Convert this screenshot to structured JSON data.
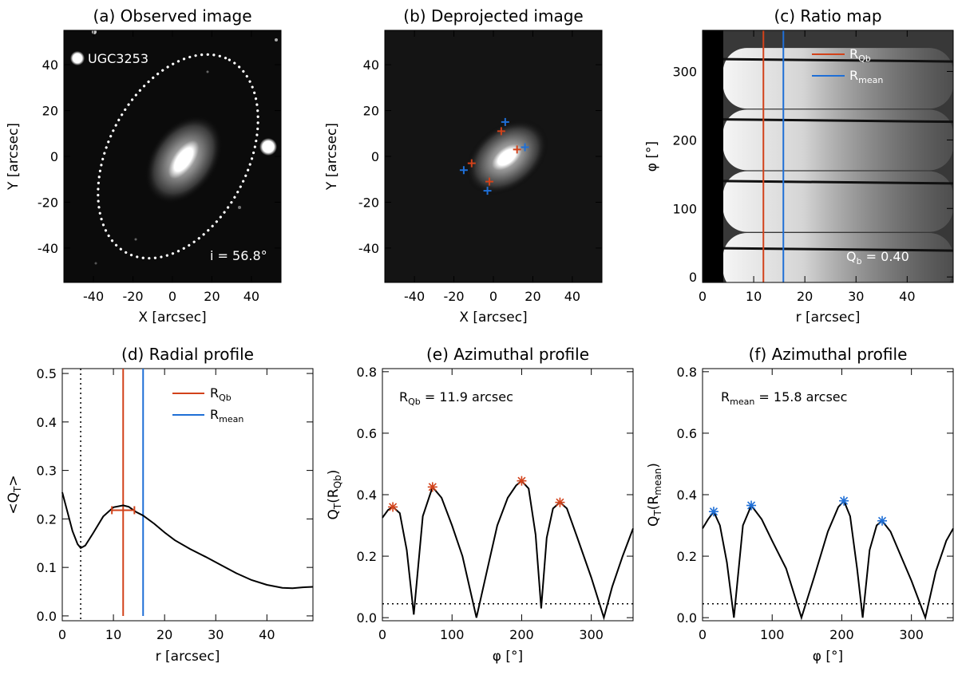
{
  "colors": {
    "red": "#d2421a",
    "blue": "#1f6fd6",
    "black": "#000000",
    "white": "#ffffff"
  },
  "chart_data": [
    {
      "id": "a",
      "type": "image",
      "title": "(a) Observed image",
      "xlabel": "X [arcsec]",
      "ylabel": "Y [arcsec]",
      "xlim": [
        -55,
        55
      ],
      "ylim": [
        -55,
        55
      ],
      "xticks": [
        "-40",
        "-20",
        "0",
        "20",
        "40"
      ],
      "xtick_vals": [
        -40,
        -20,
        0,
        20,
        40
      ],
      "yticks": [
        "-40",
        "-20",
        "0",
        "20",
        "40"
      ],
      "ytick_vals": [
        -40,
        -20,
        0,
        20,
        40
      ],
      "galaxy_label": "UGC3253",
      "inclination_label": "i =  56.8°"
    },
    {
      "id": "b",
      "type": "image",
      "title": "(b) Deprojected image",
      "xlabel": "X [arcsec]",
      "ylabel": "Y [arcsec]",
      "xlim": [
        -55,
        55
      ],
      "ylim": [
        -55,
        55
      ],
      "xticks": [
        "-40",
        "-20",
        "0",
        "20",
        "40"
      ],
      "xtick_vals": [
        -40,
        -20,
        0,
        20,
        40
      ],
      "yticks": [
        "-40",
        "-20",
        "0",
        "20",
        "40"
      ],
      "ytick_vals": [
        -40,
        -20,
        0,
        20,
        40
      ],
      "red_markers": [
        [
          4,
          11
        ],
        [
          12,
          3
        ],
        [
          -2,
          -11
        ],
        [
          -11,
          -3
        ]
      ],
      "blue_markers": [
        [
          6,
          15
        ],
        [
          16,
          4
        ],
        [
          -3,
          -15
        ],
        [
          -15,
          -6
        ]
      ]
    },
    {
      "id": "c",
      "type": "heatmap",
      "title": "(c) Ratio map",
      "xlabel": "r [arcsec]",
      "ylabel": "φ [°]",
      "xlim": [
        0,
        49
      ],
      "ylim": [
        -8,
        360
      ],
      "xticks": [
        "0",
        "10",
        "20",
        "30",
        "40"
      ],
      "xtick_vals": [
        0,
        10,
        20,
        30,
        40
      ],
      "yticks": [
        "0",
        "100",
        "200",
        "300"
      ],
      "ytick_vals": [
        0,
        100,
        200,
        300
      ],
      "vlines": [
        {
          "x": 11.9,
          "color": "red",
          "name": "RQb"
        },
        {
          "x": 15.8,
          "color": "blue",
          "name": "Rmean"
        }
      ],
      "legend": [
        {
          "base": "R",
          "sub": "Qb",
          "color": "red"
        },
        {
          "base": "R",
          "sub": "mean",
          "color": "blue"
        }
      ],
      "qb_label": {
        "base": "Q",
        "sub": "b",
        "value": " =   0.40"
      }
    },
    {
      "id": "d",
      "type": "line",
      "title": "(d) Radial profile",
      "xlabel": "r [arcsec]",
      "ylabel": "<QT>",
      "xlim": [
        0,
        49
      ],
      "ylim": [
        -0.01,
        0.51
      ],
      "xticks": [
        "0",
        "10",
        "20",
        "30",
        "40"
      ],
      "xtick_vals": [
        0,
        10,
        20,
        30,
        40
      ],
      "yticks": [
        "0.0",
        "0.1",
        "0.2",
        "0.3",
        "0.4",
        "0.5"
      ],
      "ytick_vals": [
        0,
        0.1,
        0.2,
        0.3,
        0.4,
        0.5
      ],
      "x": [
        0,
        1,
        2,
        3,
        3.6,
        4.5,
        6,
        8,
        10,
        11.9,
        13,
        14.5,
        15.8,
        18,
        20,
        22,
        25,
        28,
        31,
        34,
        37,
        40,
        43,
        45,
        47,
        49
      ],
      "y": [
        0.255,
        0.215,
        0.175,
        0.148,
        0.14,
        0.145,
        0.17,
        0.205,
        0.224,
        0.228,
        0.225,
        0.214,
        0.207,
        0.19,
        0.172,
        0.156,
        0.138,
        0.122,
        0.105,
        0.088,
        0.074,
        0.064,
        0.058,
        0.057,
        0.059,
        0.06
      ],
      "dotted_vline": 3.6,
      "vlines": [
        {
          "x": 11.9,
          "color": "red",
          "name": "RQb"
        },
        {
          "x": 15.8,
          "color": "blue",
          "name": "Rmean"
        }
      ],
      "error_bar": {
        "x_low": 9.7,
        "x_high": 14.1,
        "y": 0.218
      },
      "legend": [
        {
          "base": "R",
          "sub": "Qb",
          "color": "red"
        },
        {
          "base": "R",
          "sub": "mean",
          "color": "blue"
        }
      ],
      "ylabel_parts": {
        "pre": "<Q",
        "sub": "T",
        "post": ">"
      }
    },
    {
      "id": "e",
      "type": "line",
      "title": "(e) Azimuthal profile",
      "xlabel": "φ [°]",
      "ylabel": "QT(RQb)",
      "xlim": [
        0,
        360
      ],
      "ylim": [
        -0.01,
        0.81
      ],
      "xticks": [
        "0",
        "100",
        "200",
        "300"
      ],
      "xtick_vals": [
        0,
        100,
        200,
        300
      ],
      "yticks": [
        "0.0",
        "0.2",
        "0.4",
        "0.6",
        "0.8"
      ],
      "ytick_vals": [
        0,
        0.2,
        0.4,
        0.6,
        0.8
      ],
      "x": [
        0,
        8,
        15,
        25,
        35,
        45,
        58,
        72,
        85,
        100,
        115,
        135,
        150,
        165,
        180,
        192,
        200,
        210,
        220,
        228,
        236,
        245,
        255,
        265,
        280,
        300,
        318,
        330,
        345,
        360
      ],
      "y": [
        0.325,
        0.35,
        0.36,
        0.34,
        0.22,
        0.01,
        0.33,
        0.425,
        0.39,
        0.3,
        0.2,
        0.0,
        0.15,
        0.3,
        0.39,
        0.43,
        0.445,
        0.42,
        0.27,
        0.03,
        0.26,
        0.355,
        0.375,
        0.355,
        0.26,
        0.13,
        0.0,
        0.1,
        0.2,
        0.29
      ],
      "peaks": [
        [
          15,
          0.36
        ],
        [
          72,
          0.425
        ],
        [
          200,
          0.445
        ],
        [
          255,
          0.375
        ]
      ],
      "hline": 0.045,
      "marker_color": "red",
      "annotation": {
        "base": "R",
        "sub": "Qb",
        "value": " = 11.9 arcsec"
      },
      "ylabel_parts": {
        "pre": "Q",
        "sub": "T",
        "mid": "(R",
        "sub2": "Qb",
        "post": ")"
      }
    },
    {
      "id": "f",
      "type": "line",
      "title": "(f) Azimuthal profile",
      "xlabel": "φ [°]",
      "ylabel": "QT(Rmean)",
      "xlim": [
        0,
        360
      ],
      "ylim": [
        -0.01,
        0.81
      ],
      "xticks": [
        "0",
        "100",
        "200",
        "300"
      ],
      "xtick_vals": [
        0,
        100,
        200,
        300
      ],
      "yticks": [
        "0.0",
        "0.2",
        "0.4",
        "0.6",
        "0.8"
      ],
      "ytick_vals": [
        0,
        0.2,
        0.4,
        0.6,
        0.8
      ],
      "x": [
        0,
        8,
        16,
        25,
        35,
        45,
        58,
        70,
        85,
        100,
        120,
        142,
        160,
        180,
        195,
        203,
        212,
        222,
        230,
        240,
        250,
        258,
        270,
        285,
        300,
        320,
        335,
        350,
        360
      ],
      "y": [
        0.29,
        0.32,
        0.345,
        0.3,
        0.18,
        0.0,
        0.3,
        0.365,
        0.32,
        0.25,
        0.16,
        0.0,
        0.13,
        0.28,
        0.36,
        0.38,
        0.33,
        0.16,
        0.0,
        0.22,
        0.3,
        0.315,
        0.28,
        0.2,
        0.12,
        0.0,
        0.15,
        0.25,
        0.29
      ],
      "peaks": [
        [
          16,
          0.345
        ],
        [
          70,
          0.365
        ],
        [
          203,
          0.38
        ],
        [
          258,
          0.315
        ]
      ],
      "hline": 0.045,
      "marker_color": "blue",
      "annotation": {
        "base": "R",
        "sub": "mean",
        "value": " = 15.8 arcsec"
      },
      "ylabel_parts": {
        "pre": "Q",
        "sub": "T",
        "mid": "(R",
        "sub2": "mean",
        "post": ")"
      }
    }
  ]
}
